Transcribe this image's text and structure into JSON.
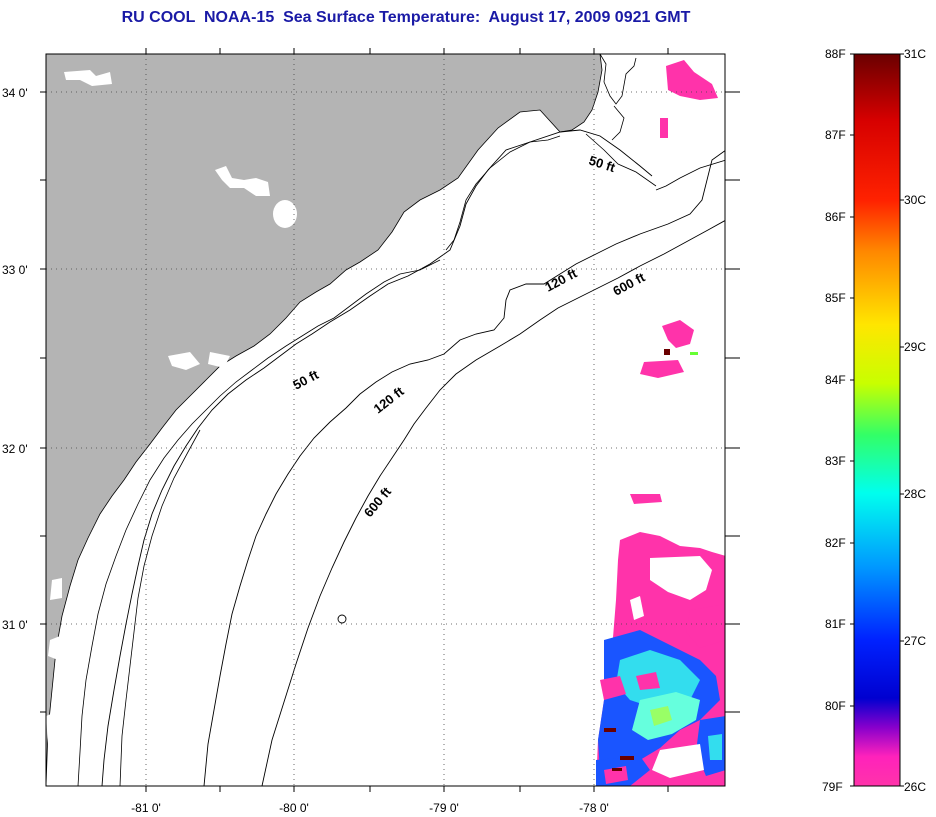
{
  "title": "RU COOL  NOAA-15  Sea Surface Temperature:  August 17, 2009 0921 GMT",
  "map": {
    "lat_labels": [
      "34 0'",
      "33 0'",
      "32 0'",
      "31 0'"
    ],
    "lon_labels": [
      "-81 0'",
      "-80 0'",
      "-79 0'",
      "-78 0'"
    ],
    "depth_labels": [
      "50 ft",
      "120 ft",
      "600 ft",
      "50 ft",
      "120 ft",
      "600 ft"
    ],
    "land_color": "#b4b4b4",
    "sst_color_warm": "#ff33aa"
  },
  "colorbar": {
    "fahrenheit_labels": [
      "88F",
      "87F",
      "86F",
      "85F",
      "84F",
      "83F",
      "82F",
      "81F",
      "80F",
      "79F"
    ],
    "celsius_labels": [
      "31C",
      "30C",
      "29C",
      "28C",
      "27C",
      "26C"
    ],
    "gradient_colors": [
      "#6a0000",
      "#d60000",
      "#ff2200",
      "#ff8800",
      "#ffe600",
      "#c8ff00",
      "#33ff66",
      "#00ffee",
      "#0099ff",
      "#0022ff",
      "#0000d0",
      "#8800cc",
      "#ff22bb",
      "#ff33aa"
    ]
  }
}
